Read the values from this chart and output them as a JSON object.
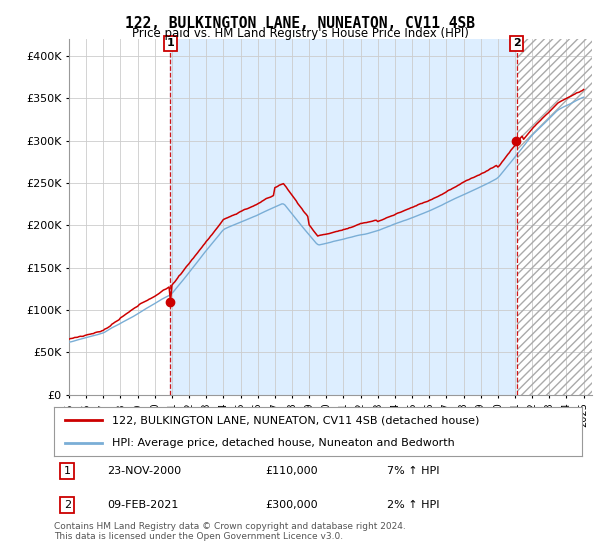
{
  "title": "122, BULKINGTON LANE, NUNEATON, CV11 4SB",
  "subtitle": "Price paid vs. HM Land Registry's House Price Index (HPI)",
  "legend_line1": "122, BULKINGTON LANE, NUNEATON, CV11 4SB (detached house)",
  "legend_line2": "HPI: Average price, detached house, Nuneaton and Bedworth",
  "annotation1_label": "1",
  "annotation1_date": "23-NOV-2000",
  "annotation1_price": "£110,000",
  "annotation1_hpi": "7% ↑ HPI",
  "annotation2_label": "2",
  "annotation2_date": "09-FEB-2021",
  "annotation2_price": "£300,000",
  "annotation2_hpi": "2% ↑ HPI",
  "footnote": "Contains HM Land Registry data © Crown copyright and database right 2024.\nThis data is licensed under the Open Government Licence v3.0.",
  "red_color": "#cc0000",
  "blue_color": "#7aaed6",
  "shade_color": "#ddeeff",
  "annotation_box_color": "#cc0000",
  "grid_color": "#cccccc",
  "background_color": "#ffffff",
  "ylim": [
    0,
    420000
  ],
  "yticks": [
    0,
    50000,
    100000,
    150000,
    200000,
    250000,
    300000,
    350000,
    400000
  ],
  "ytick_labels": [
    "£0",
    "£50K",
    "£100K",
    "£150K",
    "£200K",
    "£250K",
    "£300K",
    "£350K",
    "£400K"
  ],
  "sale1_year": 2000.9,
  "sale1_price": 110000,
  "sale2_year": 2021.1,
  "sale2_price": 300000
}
